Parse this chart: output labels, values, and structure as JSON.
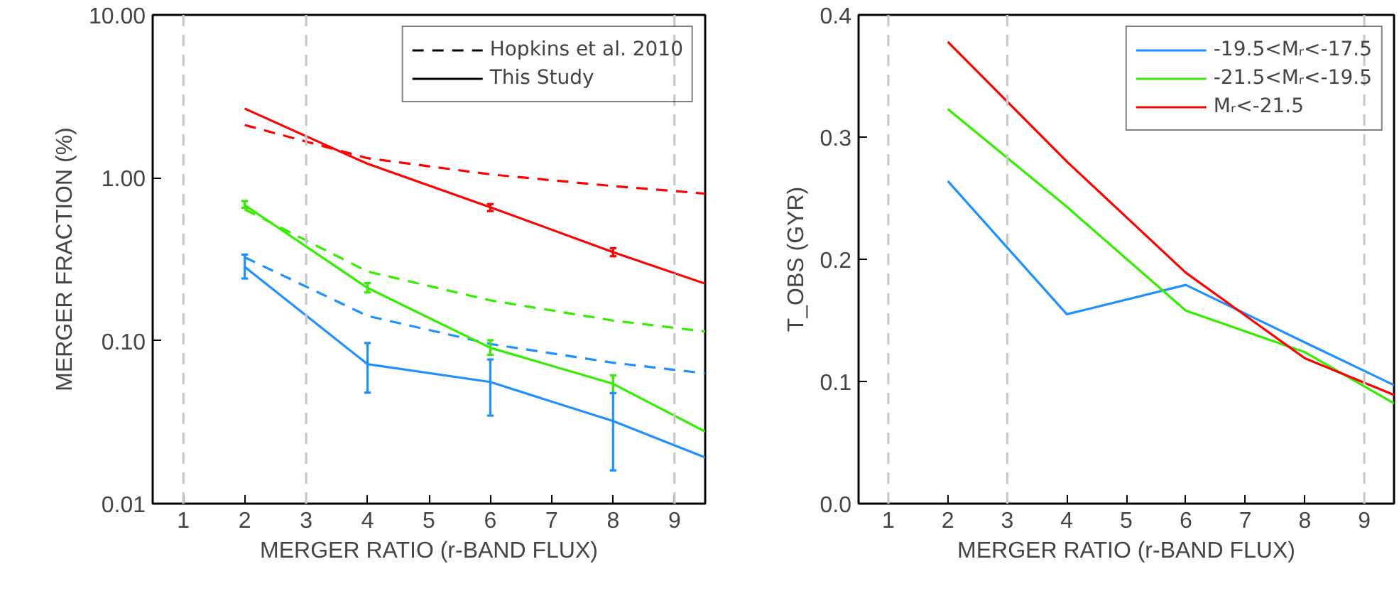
{
  "chart_data": [
    {
      "type": "line",
      "xlabel": "MERGER RATIO (r-BAND FLUX)",
      "ylabel": "MERGER FRACTION (%)",
      "log": "y",
      "xlim": [
        0.5,
        9.5
      ],
      "xticks": [
        1,
        2,
        3,
        4,
        5,
        6,
        7,
        8,
        9
      ],
      "ylim": [
        0.01,
        10
      ],
      "yticks": [
        {
          "value": 0.01,
          "label": "0.01"
        },
        {
          "value": 0.1,
          "label": "0.10"
        },
        {
          "value": 1,
          "label": "1.00"
        },
        {
          "value": 10,
          "label": "10.00"
        }
      ],
      "grid": false,
      "legend": "top right",
      "annotations": [
        "Hopkins et al. 2010",
        "This Study"
      ],
      "x": [
        2,
        4,
        6,
        8,
        9.5
      ],
      "series": [
        {
          "color": "#ff0000",
          "line_style": "dashed",
          "values": [
            2.11,
            1.32,
            1.05,
            0.89,
            0.8
          ]
        },
        {
          "color": "#33ee00",
          "line_style": "dashed",
          "values": [
            0.64,
            0.266,
            0.177,
            0.133,
            0.114
          ]
        },
        {
          "color": "#1e90ff",
          "line_style": "dashed",
          "values": [
            0.325,
            0.142,
            0.0955,
            0.0733,
            0.063
          ]
        },
        {
          "color": "#ff0000",
          "line_style": "solid",
          "values": [
            2.66,
            1.22,
            0.66,
            0.35,
            0.224
          ],
          "errors": [
            null,
            null,
            [
              0.625,
              0.69
            ],
            [
              0.33,
              0.37
            ],
            null
          ]
        },
        {
          "color": "#33ee00",
          "line_style": "solid",
          "values": [
            0.68,
            0.211,
            0.0905,
            0.0544,
            0.0277
          ],
          "errors": [
            [
              0.655,
              0.72
            ],
            [
              0.198,
              0.226
            ],
            [
              0.082,
              0.1007
            ],
            [
              0.0477,
              0.0613
            ],
            null
          ]
        },
        {
          "color": "#1e90ff",
          "line_style": "solid",
          "values": [
            0.284,
            0.0718,
            0.0558,
            0.0321,
            0.0192
          ],
          "errors": [
            [
              0.241,
              0.338
            ],
            [
              0.048,
              0.0968
            ],
            [
              0.0347,
              0.0767
            ],
            [
              0.016,
              0.0477
            ],
            null
          ]
        }
      ],
      "ref_lines": [
        {
          "axis": "x",
          "value": 1,
          "color": "#c8c8c8",
          "line_style": "dashed"
        },
        {
          "axis": "x",
          "value": 3,
          "color": "#c8c8c8",
          "line_style": "dashed"
        },
        {
          "axis": "x",
          "value": 9,
          "color": "#c8c8c8",
          "line_style": "dashed"
        }
      ]
    },
    {
      "type": "line",
      "xlabel": "MERGER RATIO (r-BAND FLUX)",
      "ylabel": "T_OBS (GYR)",
      "xlim": [
        0.5,
        9.5
      ],
      "xticks": [
        1,
        2,
        3,
        4,
        5,
        6,
        7,
        8,
        9
      ],
      "ylim": [
        0,
        0.4
      ],
      "yticks": [
        {
          "value": 0,
          "label": "0.0"
        },
        {
          "value": 0.1,
          "label": "0.1"
        },
        {
          "value": 0.2,
          "label": "0.2"
        },
        {
          "value": 0.3,
          "label": "0.3"
        },
        {
          "value": 0.4,
          "label": "0.4"
        }
      ],
      "grid": false,
      "legend": "top right",
      "x": [
        2,
        4,
        6,
        8,
        9.5
      ],
      "series": [
        {
          "name": "-19.5<Mᵣ<-17.5",
          "color": "#1e90ff",
          "line_style": "solid",
          "values": [
            0.264,
            0.155,
            0.179,
            0.132,
            0.097
          ]
        },
        {
          "name": "-21.5<Mᵣ<-19.5",
          "color": "#33ee00",
          "line_style": "solid",
          "values": [
            0.323,
            0.243,
            0.158,
            0.124,
            0.082
          ]
        },
        {
          "name": "Mᵣ<-21.5",
          "color": "#ff0000",
          "line_style": "solid",
          "values": [
            0.378,
            0.28,
            0.189,
            0.119,
            0.089
          ]
        }
      ],
      "ref_lines": [
        {
          "axis": "x",
          "value": 1,
          "color": "#c8c8c8",
          "line_style": "dashed"
        },
        {
          "axis": "x",
          "value": 3,
          "color": "#c8c8c8",
          "line_style": "dashed"
        },
        {
          "axis": "x",
          "value": 9,
          "color": "#c8c8c8",
          "line_style": "dashed"
        }
      ]
    }
  ]
}
